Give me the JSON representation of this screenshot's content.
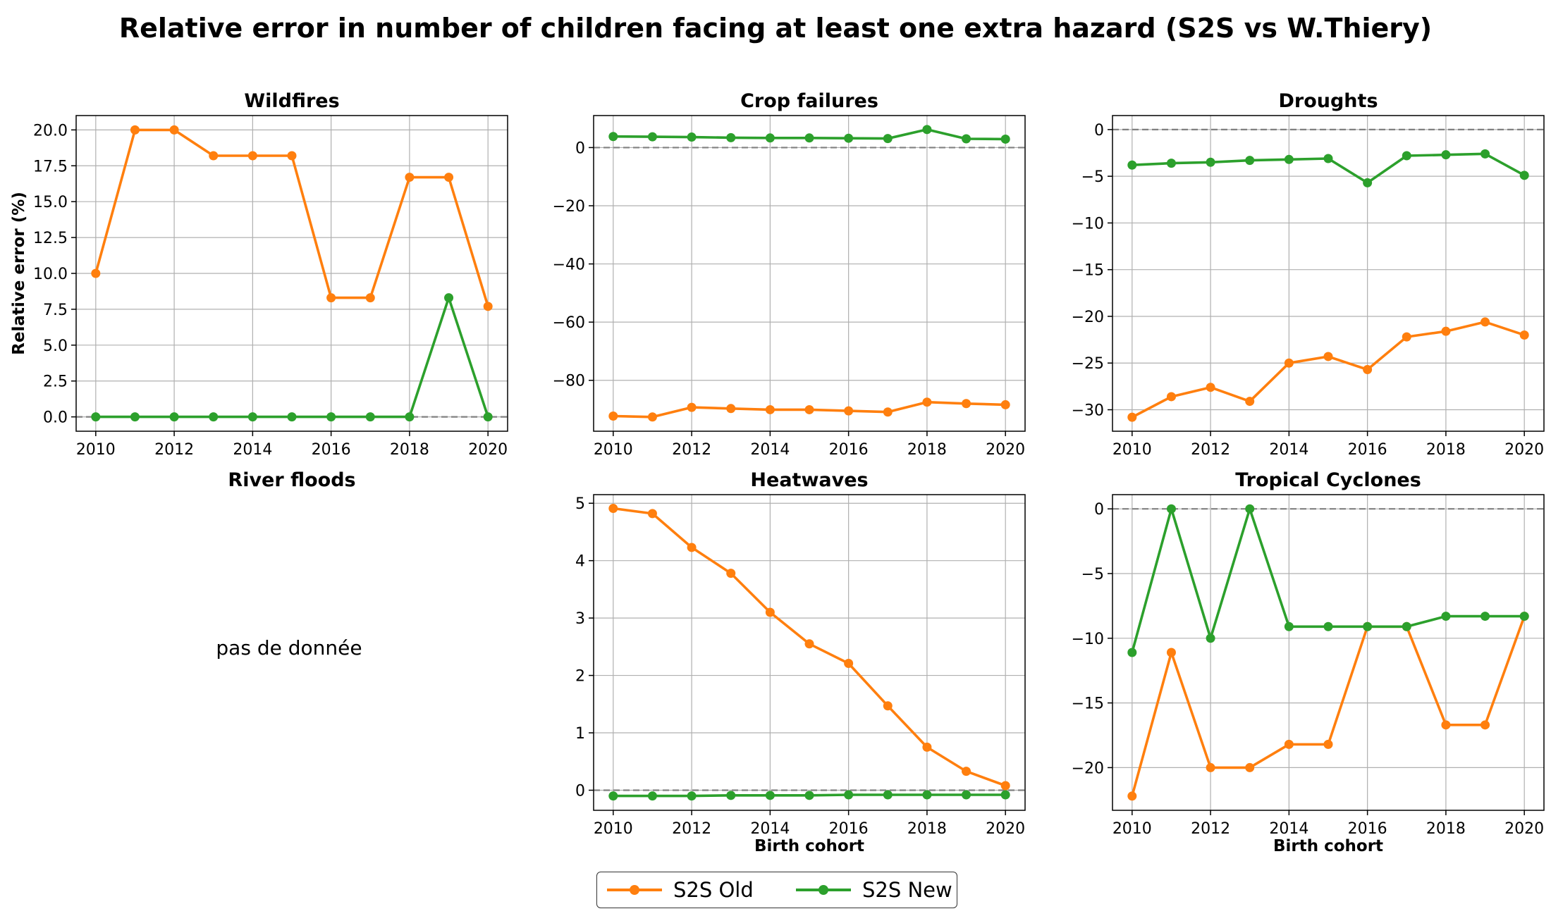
{
  "title": "Relative error in number of children facing at least one extra hazard (S2S vs W.Thiery)",
  "colors": {
    "old": "#ff7f0e",
    "new": "#2ca02c",
    "zero_line": "#808080",
    "grid": "#b0b0b0"
  },
  "legend": [
    {
      "name": "S2S Old",
      "color": "#ff7f0e"
    },
    {
      "name": "S2S New",
      "color": "#2ca02c"
    }
  ],
  "river_floods": {
    "title": "River floods",
    "message": "pas de donnée"
  },
  "chart_data": [
    {
      "type": "line",
      "title": "Wildfires",
      "xlabel": "",
      "ylabel": "Relative error (%)",
      "x": [
        2010,
        2011,
        2012,
        2013,
        2014,
        2015,
        2016,
        2017,
        2018,
        2019,
        2020
      ],
      "xticks": [
        2010,
        2012,
        2014,
        2016,
        2018,
        2020
      ],
      "yticks": [
        0.0,
        2.5,
        5.0,
        7.5,
        10.0,
        12.5,
        15.0,
        17.5,
        20.0
      ],
      "ytick_labels": [
        "0.0",
        "2.5",
        "5.0",
        "7.5",
        "10.0",
        "12.5",
        "15.0",
        "17.5",
        "20.0"
      ],
      "ylim": [
        -1.0,
        21.0
      ],
      "xlim": [
        2009.5,
        2020.5
      ],
      "grid": true,
      "series": [
        {
          "name": "S2S Old",
          "values": [
            10.0,
            20.0,
            20.0,
            18.2,
            18.2,
            18.2,
            8.3,
            8.3,
            16.7,
            16.7,
            7.7
          ]
        },
        {
          "name": "S2S New",
          "values": [
            0,
            0,
            0,
            0,
            0,
            0,
            0,
            0,
            0,
            8.3,
            0
          ]
        }
      ]
    },
    {
      "type": "line",
      "title": "Crop failures",
      "xlabel": "",
      "ylabel": "",
      "x": [
        2010,
        2011,
        2012,
        2013,
        2014,
        2015,
        2016,
        2017,
        2018,
        2019,
        2020
      ],
      "xticks": [
        2010,
        2012,
        2014,
        2016,
        2018,
        2020
      ],
      "yticks": [
        -80,
        -60,
        -40,
        -20,
        0
      ],
      "ytick_labels": [
        "−80",
        "−60",
        "−40",
        "−20",
        "0"
      ],
      "ylim": [
        -97.5,
        11.0
      ],
      "xlim": [
        2009.5,
        2020.5
      ],
      "grid": true,
      "series": [
        {
          "name": "S2S Old",
          "values": [
            -92.3,
            -92.6,
            -89.3,
            -89.7,
            -90.1,
            -90.1,
            -90.5,
            -90.9,
            -87.5,
            -88.0,
            -88.4
          ]
        },
        {
          "name": "S2S New",
          "values": [
            3.8,
            3.7,
            3.6,
            3.4,
            3.3,
            3.3,
            3.2,
            3.1,
            6.2,
            3.0,
            2.9
          ]
        }
      ]
    },
    {
      "type": "line",
      "title": "Droughts",
      "xlabel": "",
      "ylabel": "",
      "x": [
        2010,
        2011,
        2012,
        2013,
        2014,
        2015,
        2016,
        2017,
        2018,
        2019,
        2020
      ],
      "xticks": [
        2010,
        2012,
        2014,
        2016,
        2018,
        2020
      ],
      "yticks": [
        -30,
        -25,
        -20,
        -15,
        -10,
        -5,
        0
      ],
      "ytick_labels": [
        "−30",
        "−25",
        "−20",
        "−15",
        "−10",
        "−5",
        "0"
      ],
      "ylim": [
        -32.3,
        1.5
      ],
      "xlim": [
        2009.5,
        2020.5
      ],
      "grid": true,
      "series": [
        {
          "name": "S2S Old",
          "values": [
            -30.8,
            -28.6,
            -27.6,
            -29.1,
            -25.0,
            -24.3,
            -25.7,
            -22.2,
            -21.6,
            -20.6,
            -22.0
          ]
        },
        {
          "name": "S2S New",
          "values": [
            -3.8,
            -3.6,
            -3.5,
            -3.3,
            -3.2,
            -3.1,
            -5.7,
            -2.8,
            -2.7,
            -2.6,
            -4.9
          ]
        }
      ]
    },
    {
      "type": "line",
      "title": "Heatwaves",
      "xlabel": "Birth cohort",
      "ylabel": "",
      "x": [
        2010,
        2011,
        2012,
        2013,
        2014,
        2015,
        2016,
        2017,
        2018,
        2019,
        2020
      ],
      "xticks": [
        2010,
        2012,
        2014,
        2016,
        2018,
        2020
      ],
      "yticks": [
        0,
        1,
        2,
        3,
        4,
        5
      ],
      "ytick_labels": [
        "0",
        "1",
        "2",
        "3",
        "4",
        "5"
      ],
      "ylim": [
        -0.35,
        5.15
      ],
      "xlim": [
        2009.5,
        2020.5
      ],
      "grid": true,
      "series": [
        {
          "name": "S2S Old",
          "values": [
            4.91,
            4.82,
            4.23,
            3.78,
            3.1,
            2.55,
            2.21,
            1.47,
            0.75,
            0.33,
            0.08
          ]
        },
        {
          "name": "S2S New",
          "values": [
            -0.1,
            -0.1,
            -0.1,
            -0.09,
            -0.09,
            -0.09,
            -0.08,
            -0.08,
            -0.08,
            -0.08,
            -0.08
          ]
        }
      ]
    },
    {
      "type": "line",
      "title": "Tropical Cyclones",
      "xlabel": "Birth cohort",
      "ylabel": "",
      "x": [
        2010,
        2011,
        2012,
        2013,
        2014,
        2015,
        2016,
        2017,
        2018,
        2019,
        2020
      ],
      "xticks": [
        2010,
        2012,
        2014,
        2016,
        2018,
        2020
      ],
      "yticks": [
        -20,
        -15,
        -10,
        -5,
        0
      ],
      "ytick_labels": [
        "−20",
        "−15",
        "−10",
        "−5",
        "0"
      ],
      "ylim": [
        -23.3,
        1.1
      ],
      "xlim": [
        2009.5,
        2020.5
      ],
      "grid": true,
      "series": [
        {
          "name": "S2S Old",
          "values": [
            -22.2,
            -11.1,
            -20.0,
            -20.0,
            -18.2,
            -18.2,
            -9.1,
            -9.1,
            -16.7,
            -16.7,
            -8.3
          ]
        },
        {
          "name": "S2S New",
          "values": [
            -11.1,
            0.0,
            -10.0,
            0.0,
            -9.1,
            -9.1,
            -9.1,
            -9.1,
            -8.3,
            -8.3,
            -8.3
          ]
        }
      ]
    }
  ]
}
